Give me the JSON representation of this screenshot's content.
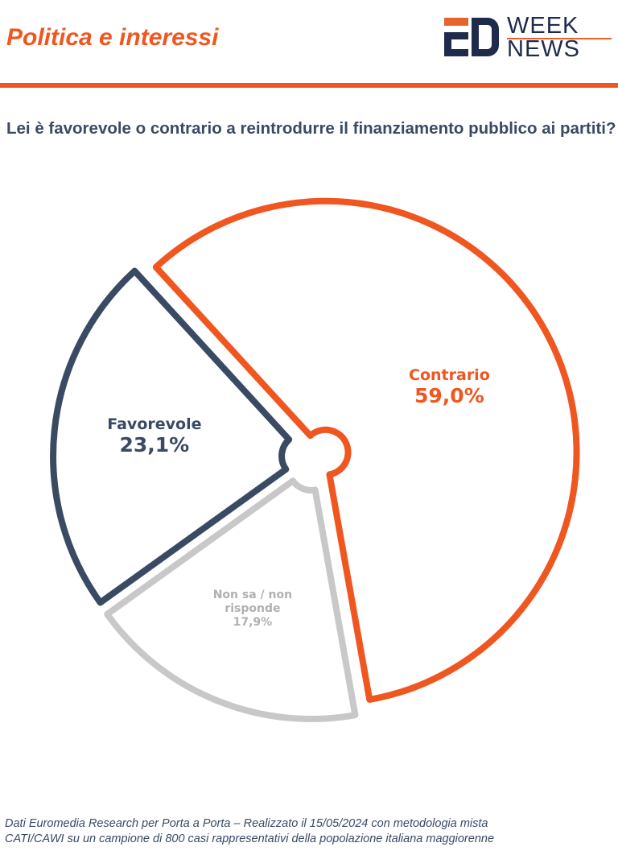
{
  "header": {
    "title": "Politica e interessi",
    "logo_text": "ER WEEK NEWS"
  },
  "question": "Lei è favorevole o contrario a reintrodurre il finanziamento pubblico ai partiti?",
  "colors": {
    "accent": "#f0561f",
    "navy": "#3a4a63",
    "gray": "#c8c8c8"
  },
  "chart_data": {
    "type": "pie",
    "title": "Lei è favorevole o contrario a reintrodurre il finanziamento pubblico ai partiti?",
    "slices": [
      {
        "label": "Contrario",
        "value": 59.0,
        "display": "59,0%",
        "color": "#f0561f"
      },
      {
        "label": "Non sa / non risponde",
        "value": 17.9,
        "display": "17,9%",
        "color": "#c8c8c8"
      },
      {
        "label": "Favorevole",
        "value": 23.1,
        "display": "23,1%",
        "color": "#3a4a63"
      }
    ]
  },
  "footer": {
    "line1": "Dati Euromedia Research per Porta a Porta – Realizzato il 15/05/2024 con metodologia mista",
    "line2": "CATI/CAWI su un campione di 800 casi rappresentativi della popolazione italiana maggiorenne"
  }
}
